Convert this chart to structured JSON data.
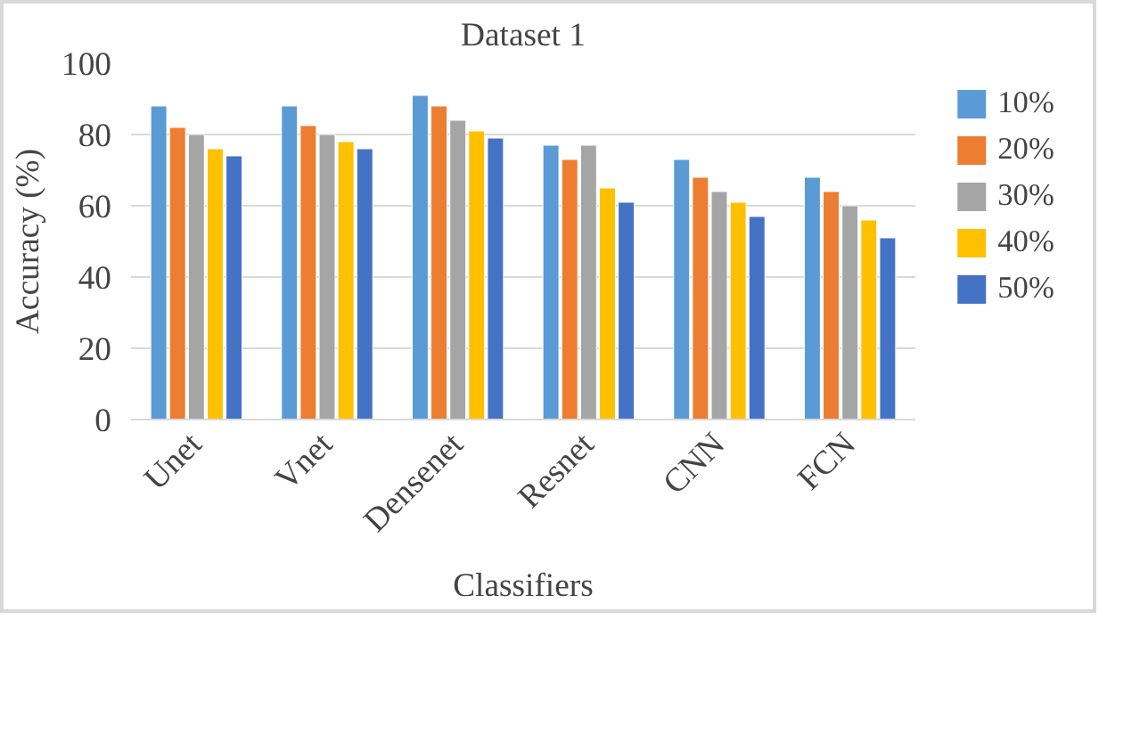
{
  "chart_data": {
    "type": "bar",
    "title": "Dataset 1",
    "xlabel": "Classifiers",
    "ylabel": "Accuracy (%)",
    "categories": [
      "Unet",
      "Vnet",
      "Densenet",
      "Resnet",
      "CNN",
      "FCN"
    ],
    "series": [
      {
        "name": "10%",
        "color": "#5b9bd5",
        "values": [
          88,
          88,
          91,
          77,
          73,
          68
        ]
      },
      {
        "name": "20%",
        "color": "#ed7d31",
        "values": [
          82,
          82.5,
          88,
          73,
          68,
          64
        ]
      },
      {
        "name": "30%",
        "color": "#a5a5a5",
        "values": [
          80,
          80,
          84,
          77,
          64,
          60
        ]
      },
      {
        "name": "40%",
        "color": "#ffc000",
        "values": [
          76,
          78,
          81,
          65,
          61,
          56
        ]
      },
      {
        "name": "50%",
        "color": "#4472c4",
        "values": [
          74,
          76,
          79,
          61,
          57,
          51
        ]
      }
    ],
    "ylim": [
      0,
      100
    ],
    "yticks": [
      0,
      20,
      40,
      60,
      80,
      100
    ],
    "grid": "y",
    "legend": "right"
  }
}
